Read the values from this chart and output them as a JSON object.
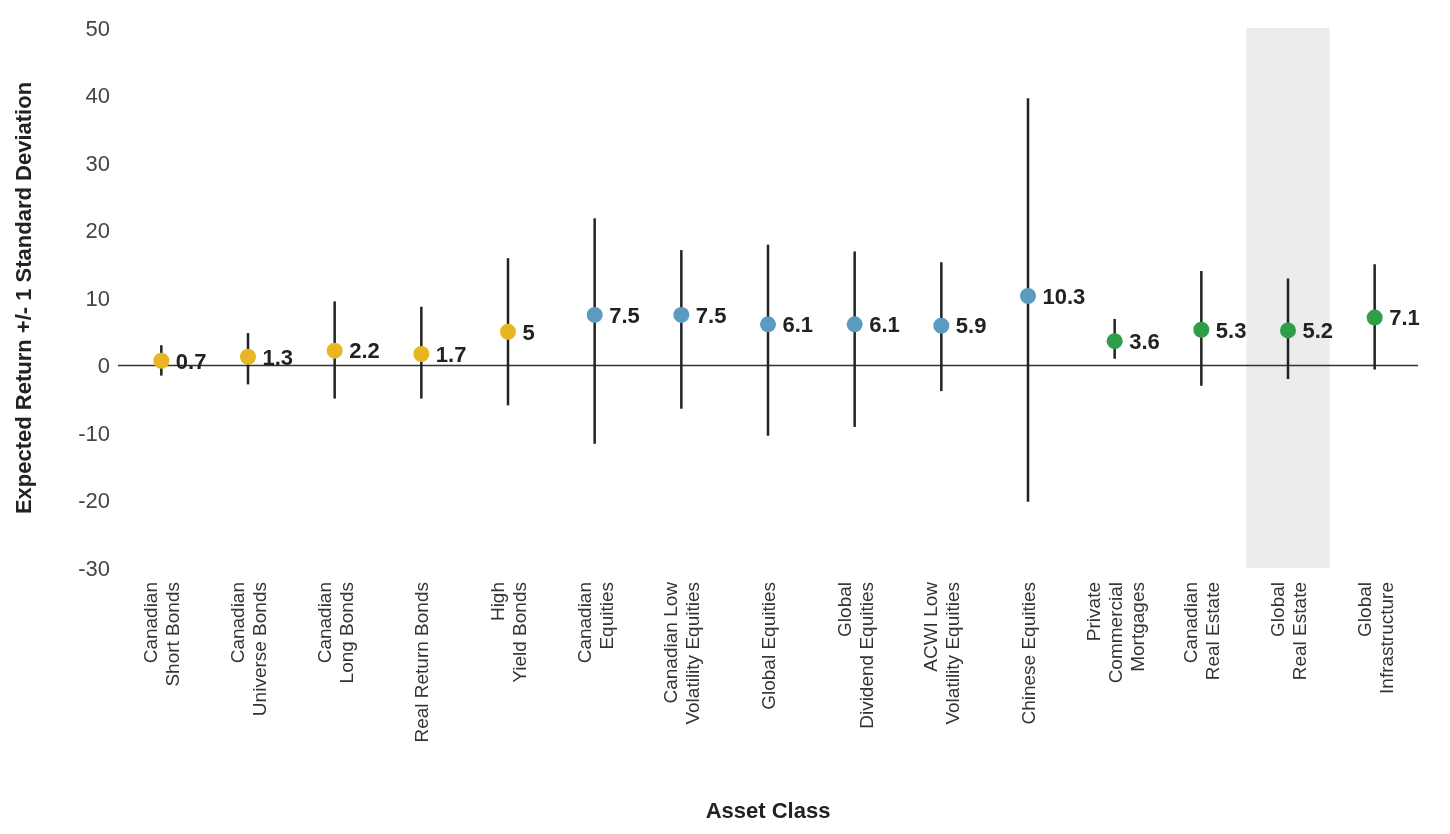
{
  "chart_data": {
    "type": "scatter",
    "xlabel": "Asset Class",
    "ylabel": "Expected Return +/- 1 Standard Deviation",
    "categories": [
      "Canadian\nShort Bonds",
      "Canadian\nUniverse Bonds",
      "Canadian\nLong Bonds",
      "Real Return Bonds",
      "High\nYield Bonds",
      "Canadian\nEquities",
      "Canadian Low\nVolatility Equities",
      "Global Equities",
      "Global\nDividend Equities",
      "ACWI Low\nVolatility Equities",
      "Chinese Equities",
      "Private\nCommercial\nMortgages",
      "Canadian\nReal  Estate",
      "Global\nReal Estate",
      "Global\nInfrastructure"
    ],
    "values": [
      0.7,
      1.3,
      2.2,
      1.7,
      5,
      7.5,
      7.5,
      6.1,
      6.1,
      5.9,
      10.3,
      3.6,
      5.3,
      5.2,
      7.1
    ],
    "errors": [
      [
        -1.5,
        3.0
      ],
      [
        -2.8,
        4.8
      ],
      [
        -4.9,
        9.5
      ],
      [
        -4.9,
        8.7
      ],
      [
        -5.9,
        15.9
      ],
      [
        -11.6,
        21.8
      ],
      [
        -6.4,
        17.1
      ],
      [
        -10.4,
        17.9
      ],
      [
        -9.1,
        16.9
      ],
      [
        -3.8,
        15.3
      ],
      [
        -20.2,
        39.6
      ],
      [
        1.0,
        6.9
      ],
      [
        -3.0,
        14.0
      ],
      [
        -2.0,
        12.9
      ],
      [
        -0.6,
        15.0
      ]
    ],
    "colors": [
      "#e8b523",
      "#e8b523",
      "#e8b523",
      "#e8b523",
      "#e8b523",
      "#5b9bbf",
      "#5b9bbf",
      "#5b9bbf",
      "#5b9bbf",
      "#5b9bbf",
      "#5b9bbf",
      "#2e9e48",
      "#2e9e48",
      "#2e9e48",
      "#2e9e48"
    ],
    "ylim": [
      -30,
      50
    ],
    "yticks": [
      -30,
      -20,
      -10,
      0,
      10,
      20,
      30,
      40,
      50
    ],
    "ref_lines": [
      {
        "axis": "y",
        "value": 0,
        "color": "#333333"
      }
    ],
    "bands": [
      {
        "axis": "x",
        "from": "Global\nReal Estate",
        "to": "Global\nReal Estate",
        "color": "#ececec"
      }
    ],
    "data_labels": true,
    "marker": "circle"
  }
}
